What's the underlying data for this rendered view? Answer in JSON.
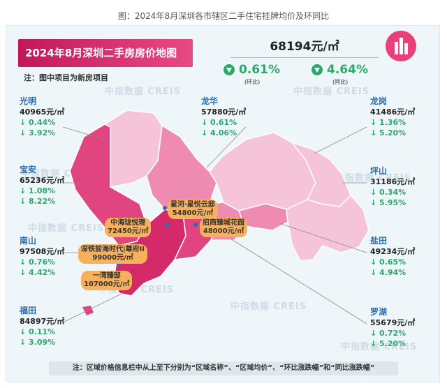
{
  "caption": "图：2024年8月深圳各市辖区二手住宅挂牌均价及环同比",
  "title": "2024年8月深圳二手房房价地图",
  "note": "注：图中项目为新房项目",
  "overall": {
    "price": "68194元/㎡",
    "mom": "0.61%",
    "mom_label": "(环比)",
    "yoy": "4.64%",
    "yoy_label": "(同比)",
    "color": "#2da86b"
  },
  "districts": [
    {
      "name": "光明",
      "price": "40965元/㎡",
      "mom": "↓ 0.44%",
      "yoy": "↓ 3.92%"
    },
    {
      "name": "宝安",
      "price": "65236元/㎡",
      "mom": "↓ 1.08%",
      "yoy": "↓ 8.22%"
    },
    {
      "name": "南山",
      "price": "97508元/㎡",
      "mom": "↓ 0.76%",
      "yoy": "↓ 4.42%"
    },
    {
      "name": "福田",
      "price": "84897元/㎡",
      "mom": "↓ 0.11%",
      "yoy": "↓ 3.09%"
    },
    {
      "name": "龙华",
      "price": "57880元/㎡",
      "mom": "↓ 0.61%",
      "yoy": "↓ 4.06%"
    },
    {
      "name": "龙岗",
      "price": "41486元/㎡",
      "mom": "↓ 1.36%",
      "yoy": "↓ 5.20%"
    },
    {
      "name": "坪山",
      "price": "31186元/㎡",
      "mom": "↓ 0.34%",
      "yoy": "↓ 5.95%"
    },
    {
      "name": "盐田",
      "price": "49234元/㎡",
      "mom": "↓ 0.65%",
      "yoy": "↓ 4.94%"
    },
    {
      "name": "罗湖",
      "price": "55679元/㎡",
      "mom": "↓ 0.72%",
      "yoy": "↓ 5.20%"
    }
  ],
  "projects": [
    {
      "name": "星河·星悦云邸",
      "price": "54800元/㎡"
    },
    {
      "name": "招商臻城花园",
      "price": "48000元/㎡"
    },
    {
      "name": "中海珑悦理",
      "price": "72450元/㎡"
    },
    {
      "name": "深铁前海时代|尊府ΙΙ",
      "price": "99000元/㎡"
    },
    {
      "name": "一湾臻邸",
      "price": "107000元/㎡"
    }
  ],
  "watermark": "中指数据 CREIS",
  "footer": "注：区域价格信息栏中从上至下分别为“区域名称”、“区域均价”、“环比涨跌幅”和“同比涨跌幅”",
  "map_colors": {
    "light": "#f6c4d8",
    "mid": "#ef8ab0",
    "dark": "#e0457f",
    "deep": "#d42a6a",
    "border": "#ffffff"
  }
}
